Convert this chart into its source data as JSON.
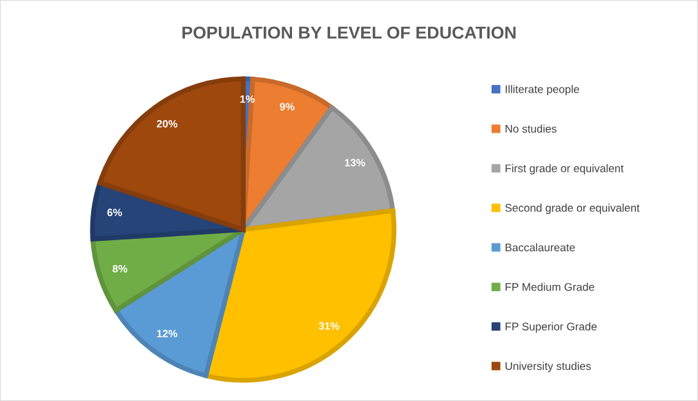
{
  "chart_data": {
    "type": "pie",
    "title": "POPULATION BY LEVEL OF EDUCATION",
    "categories": [
      "Illiterate people",
      "No studies",
      "First grade or equivalent",
      "Second grade or equivalent",
      "Baccalaureate",
      "FP Medium Grade",
      "FP Superior Grade",
      "University studies"
    ],
    "values": [
      1,
      9,
      13,
      31,
      12,
      8,
      6,
      20
    ],
    "value_labels": [
      "1%",
      "9%",
      "13%",
      "31%",
      "12%",
      "8%",
      "6%",
      "20%"
    ],
    "colors": [
      "#4472c4",
      "#ed7d31",
      "#a5a5a5",
      "#ffc000",
      "#5b9bd5",
      "#70ad47",
      "#264478",
      "#9e480e"
    ],
    "legend": "right"
  }
}
